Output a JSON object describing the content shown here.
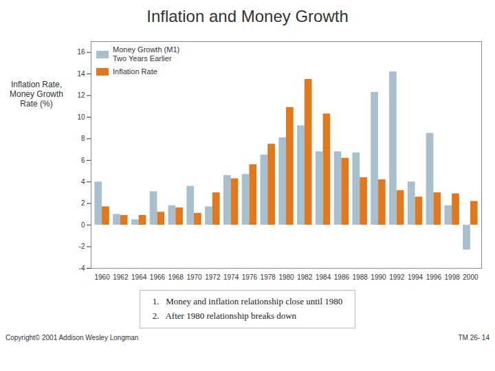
{
  "chart_data": {
    "type": "bar",
    "title": "Inflation and Money Growth",
    "ylabel": "Inflation Rate,\nMoney Growth\nRate (%)",
    "categories": [
      "1960",
      "1962",
      "1964",
      "1966",
      "1968",
      "1970",
      "1972",
      "1974",
      "1976",
      "1978",
      "1980",
      "1982",
      "1984",
      "1986",
      "1988",
      "1990",
      "1992",
      "1994",
      "1996",
      "1998",
      "2000"
    ],
    "series": [
      {
        "name": "Money Growth (M1)\nTwo Years Earlier",
        "color": "#aabfce",
        "values": [
          4.0,
          1.0,
          0.5,
          3.1,
          1.8,
          3.6,
          1.7,
          4.6,
          4.7,
          6.5,
          8.1,
          9.2,
          6.8,
          6.8,
          6.7,
          12.3,
          14.2,
          4.0,
          8.5,
          1.8,
          -2.3
        ]
      },
      {
        "name": "Inflation Rate",
        "color": "#e07820",
        "values": [
          1.7,
          0.9,
          0.9,
          1.2,
          1.6,
          1.1,
          3.0,
          4.3,
          5.6,
          7.5,
          10.9,
          13.5,
          10.3,
          6.2,
          4.4,
          4.2,
          3.2,
          2.6,
          3.0,
          2.9,
          2.2
        ]
      }
    ],
    "ylim": [
      -4,
      17
    ],
    "yticks": [
      -4,
      -2,
      0,
      2,
      4,
      6,
      8,
      10,
      12,
      14,
      16
    ],
    "grid": false,
    "legend": "upper left",
    "annotations": [
      "1.   Money and inflation relationship close until 1980",
      "2.   After 1980 relationship breaks down"
    ],
    "footnotes": [
      "Copyright© 2001 Addison Wesley Longman",
      "TM 26- 14"
    ]
  }
}
